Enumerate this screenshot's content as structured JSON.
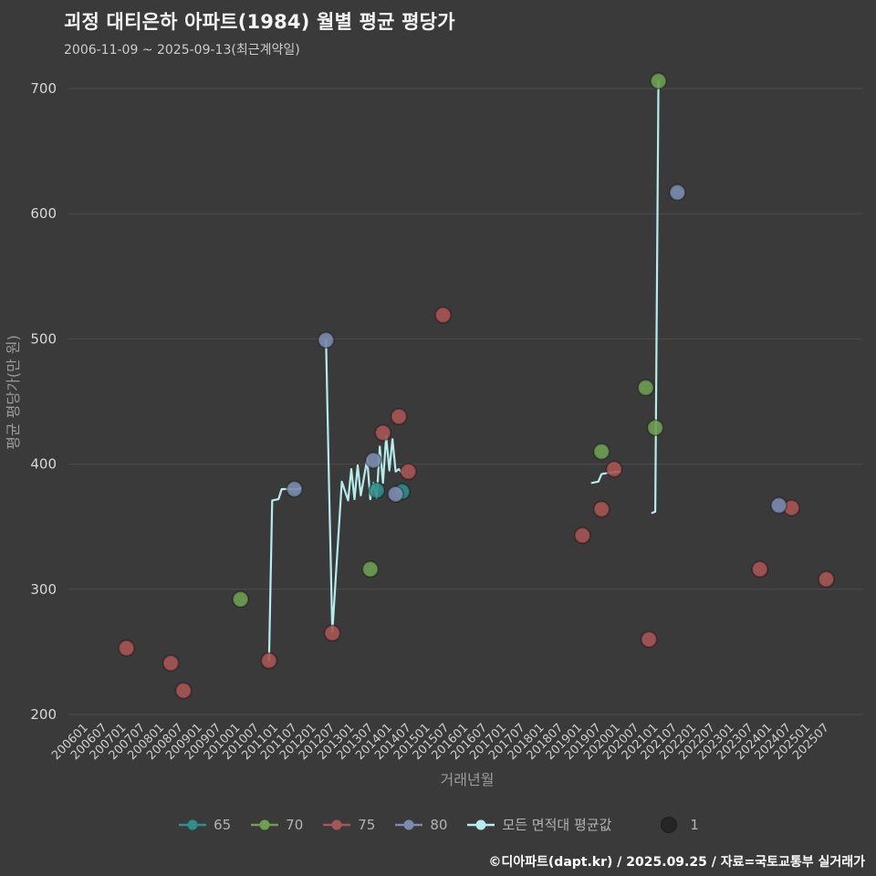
{
  "title": "괴정 대티은하 아파트(1984) 월별 평균 평당가",
  "subtitle": "2006-11-09 ~ 2025-09-13(최근계약일)",
  "footer": "©디아파트(dapt.kr) / 2025.09.25 / 자료=국토교통부 실거래가",
  "colors": {
    "background": "#3a3a3a",
    "grid": "#4d4d4d",
    "series65": "#2f8f8a",
    "series70": "#6f9e53",
    "series75": "#a85555",
    "series80": "#7a8cad",
    "avg_line": "#b5ecec",
    "size_dot": "#252525"
  },
  "legend": {
    "items": [
      {
        "label": "65",
        "color": "series65",
        "marker": "line-dot"
      },
      {
        "label": "70",
        "color": "series70",
        "marker": "line-dot"
      },
      {
        "label": "75",
        "color": "series75",
        "marker": "line-dot"
      },
      {
        "label": "80",
        "color": "series80",
        "marker": "line-dot"
      },
      {
        "label": "모든 면적대 평균값",
        "color": "avg_line",
        "marker": "line-dot"
      },
      {
        "label": "1",
        "color": "size_dot",
        "marker": "dot"
      }
    ]
  },
  "chart_data": {
    "type": "scatter",
    "title": "괴정 대티은하 아파트(1984) 월별 평균 평당가",
    "xlabel": "거래년월",
    "ylabel": "평균 평당가(만 원)",
    "ylim": [
      200,
      700
    ],
    "yticks": [
      200,
      300,
      400,
      500,
      600,
      700
    ],
    "xticks": [
      "200601",
      "200607",
      "200701",
      "200707",
      "200801",
      "200807",
      "200901",
      "200907",
      "201001",
      "201007",
      "201101",
      "201107",
      "201201",
      "201207",
      "201301",
      "201307",
      "201401",
      "201407",
      "201501",
      "201507",
      "201601",
      "201607",
      "201701",
      "201707",
      "201801",
      "201807",
      "201901",
      "201907",
      "202001",
      "202007",
      "202101",
      "202107",
      "202201",
      "202207",
      "202301",
      "202307",
      "202401",
      "202407",
      "202501",
      "202507"
    ],
    "grid": true,
    "legend_position": "bottom",
    "series": [
      {
        "name": "65",
        "color_key": "series65",
        "points": [
          [
            201308,
            379
          ],
          [
            201404,
            378
          ]
        ]
      },
      {
        "name": "70",
        "color_key": "series70",
        "points": [
          [
            201001,
            292
          ],
          [
            201306,
            316
          ],
          [
            201907,
            410
          ],
          [
            202009,
            461
          ],
          [
            202012,
            429
          ],
          [
            202101,
            706
          ]
        ]
      },
      {
        "name": "75",
        "color_key": "series75",
        "points": [
          [
            200701,
            253
          ],
          [
            200803,
            241
          ],
          [
            200807,
            219
          ],
          [
            201010,
            243
          ],
          [
            201206,
            265
          ],
          [
            201310,
            425
          ],
          [
            201403,
            438
          ],
          [
            201406,
            394
          ],
          [
            201505,
            519
          ],
          [
            201901,
            343
          ],
          [
            201907,
            364
          ],
          [
            201911,
            396
          ],
          [
            202010,
            260
          ],
          [
            202309,
            316
          ],
          [
            202407,
            365
          ],
          [
            202506,
            308
          ]
        ]
      },
      {
        "name": "80",
        "color_key": "series80",
        "points": [
          [
            201106,
            380
          ],
          [
            201204,
            499
          ],
          [
            201307,
            403
          ],
          [
            201402,
            376
          ],
          [
            202107,
            617
          ],
          [
            202403,
            367
          ]
        ]
      }
    ],
    "avg_line": {
      "name": "모든 면적대 평균값",
      "segments": [
        [
          [
            201010,
            243
          ],
          [
            201011,
            371
          ],
          [
            201101,
            372
          ],
          [
            201102,
            380
          ],
          [
            201107,
            380
          ],
          [
            201108,
            381
          ]
        ],
        [
          [
            201204,
            499
          ],
          [
            201205,
            379
          ],
          [
            201206,
            266
          ],
          [
            201209,
            386
          ],
          [
            201211,
            371
          ],
          [
            201212,
            396
          ],
          [
            201301,
            372
          ],
          [
            201302,
            399
          ],
          [
            201303,
            375
          ],
          [
            201305,
            404
          ],
          [
            201306,
            372
          ],
          [
            201307,
            385
          ],
          [
            201308,
            373
          ],
          [
            201309,
            414
          ],
          [
            201310,
            385
          ],
          [
            201311,
            422
          ],
          [
            201312,
            395
          ],
          [
            201401,
            420
          ],
          [
            201402,
            394
          ],
          [
            201403,
            396
          ],
          [
            201404,
            393
          ]
        ],
        [
          [
            201904,
            385
          ],
          [
            201906,
            386
          ],
          [
            201907,
            392
          ],
          [
            201909,
            393
          ],
          [
            201912,
            394
          ],
          [
            202001,
            394
          ]
        ],
        [
          [
            202011,
            361
          ],
          [
            202012,
            362
          ],
          [
            202101,
            706
          ]
        ]
      ]
    },
    "size_legend": {
      "label": "1"
    }
  }
}
